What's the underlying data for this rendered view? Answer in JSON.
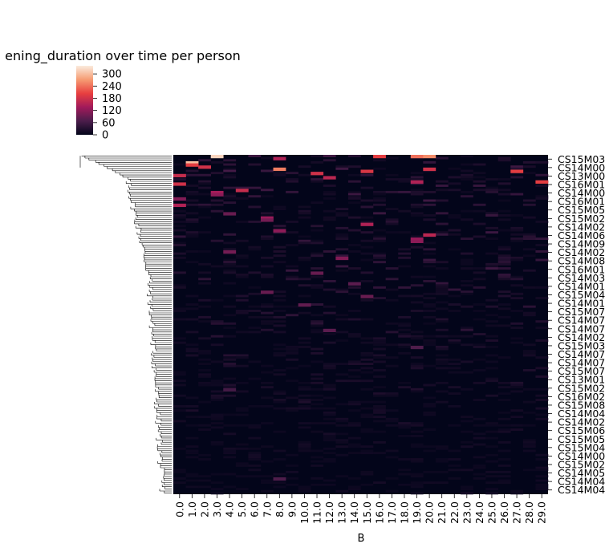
{
  "chart_data": {
    "type": "heatmap",
    "title": "ening_duration over time per person",
    "xlabel": "B",
    "ylabel": "",
    "x_ticks": [
      "0.0",
      "1.0",
      "2.0",
      "3.0",
      "4.0",
      "5.0",
      "6.0",
      "7.0",
      "8.0",
      "9.0",
      "10.0",
      "11.0",
      "12.0",
      "13.0",
      "14.0",
      "15.0",
      "16.0",
      "17.0",
      "18.0",
      "19.0",
      "20.0",
      "21.0",
      "22.0",
      "23.0",
      "24.0",
      "25.0",
      "26.0",
      "27.0",
      "28.0",
      "29.0"
    ],
    "y_ticks": [
      "CS15M03",
      "CS14M00",
      "CS13M00",
      "CS16M01",
      "CS14M00",
      "CS16M01",
      "CS15M05",
      "CS15M02",
      "CS14M02",
      "CS14M06",
      "CS14M09",
      "CS14M02",
      "CS14M08",
      "CS16M01",
      "CS14M03",
      "CS14M01",
      "CS15M04",
      "CS14M01",
      "CS15M07",
      "CS14M07",
      "CS14M07",
      "CS14M02",
      "CS15M03",
      "CS14M07",
      "CS14M07",
      "CS15M07",
      "CS13M01",
      "CS15M02",
      "CS16M02",
      "CS15M08",
      "CS14M04",
      "CS14M02",
      "CS15M06",
      "CS15M05",
      "CS15M04",
      "CS14M00",
      "CS15M02",
      "CS14M05",
      "CS14M04",
      "CS14M04"
    ],
    "n_rows": 160,
    "colorbar": {
      "min": 0,
      "max": 340,
      "ticks": [
        0,
        60,
        120,
        180,
        240,
        300
      ]
    },
    "colormap": [
      "#03051a",
      "#4c1d4b",
      "#a11a5b",
      "#e83f3f",
      "#f69c73",
      "#faebdd"
    ],
    "dendrogram": true,
    "hot_cells": [
      {
        "row": 0,
        "col": 3,
        "value": 320
      },
      {
        "row": 0,
        "col": 19,
        "value": 240
      },
      {
        "row": 0,
        "col": 20,
        "value": 260
      },
      {
        "row": 0,
        "col": 16,
        "value": 200
      },
      {
        "row": 1,
        "col": 8,
        "value": 150
      },
      {
        "row": 3,
        "col": 1,
        "value": 300
      },
      {
        "row": 4,
        "col": 1,
        "value": 200
      },
      {
        "row": 5,
        "col": 2,
        "value": 180
      },
      {
        "row": 6,
        "col": 8,
        "value": 250
      },
      {
        "row": 6,
        "col": 20,
        "value": 180
      },
      {
        "row": 7,
        "col": 15,
        "value": 190
      },
      {
        "row": 7,
        "col": 27,
        "value": 200
      },
      {
        "row": 8,
        "col": 11,
        "value": 180
      },
      {
        "row": 9,
        "col": 0,
        "value": 170
      },
      {
        "row": 10,
        "col": 12,
        "value": 160
      },
      {
        "row": 12,
        "col": 29,
        "value": 200
      },
      {
        "row": 12,
        "col": 19,
        "value": 150
      },
      {
        "row": 13,
        "col": 0,
        "value": 180
      },
      {
        "row": 16,
        "col": 5,
        "value": 170
      },
      {
        "row": 17,
        "col": 3,
        "value": 140
      },
      {
        "row": 18,
        "col": 3,
        "value": 120
      },
      {
        "row": 20,
        "col": 0,
        "value": 110
      },
      {
        "row": 23,
        "col": 0,
        "value": 150
      },
      {
        "row": 27,
        "col": 4,
        "value": 90
      },
      {
        "row": 29,
        "col": 7,
        "value": 130
      },
      {
        "row": 30,
        "col": 7,
        "value": 100
      },
      {
        "row": 32,
        "col": 15,
        "value": 150
      },
      {
        "row": 35,
        "col": 8,
        "value": 120
      },
      {
        "row": 37,
        "col": 20,
        "value": 160
      },
      {
        "row": 39,
        "col": 19,
        "value": 130
      },
      {
        "row": 40,
        "col": 19,
        "value": 120
      },
      {
        "row": 45,
        "col": 4,
        "value": 100
      },
      {
        "row": 48,
        "col": 13,
        "value": 110
      },
      {
        "row": 55,
        "col": 11,
        "value": 90
      },
      {
        "row": 60,
        "col": 14,
        "value": 80
      },
      {
        "row": 64,
        "col": 7,
        "value": 90
      },
      {
        "row": 66,
        "col": 15,
        "value": 90
      },
      {
        "row": 70,
        "col": 10,
        "value": 85
      },
      {
        "row": 82,
        "col": 12,
        "value": 80
      },
      {
        "row": 90,
        "col": 19,
        "value": 70
      },
      {
        "row": 110,
        "col": 4,
        "value": 60
      },
      {
        "row": 152,
        "col": 8,
        "value": 70
      }
    ]
  }
}
